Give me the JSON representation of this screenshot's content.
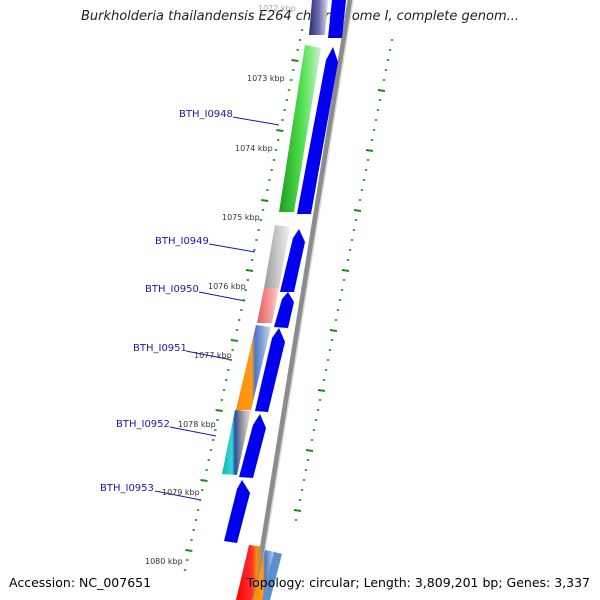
{
  "title": "Burkholderia thailandensis E264 chromosome I, complete genom...",
  "footer": {
    "accession": "Accession: NC_007651",
    "summary": "Topology: circular; Length: 3,809,201 bp; Genes: 3,337"
  },
  "kbp_labels": [
    "1072 kbp",
    "1073 kbp",
    "1074 kbp",
    "1075 kbp",
    "1076 kbp",
    "1077 kbp",
    "1078 kbp",
    "1079 kbp",
    "1080 kbp"
  ],
  "genes": [
    {
      "id": "BTH_I0948",
      "color": "#1a1aa6"
    },
    {
      "id": "BTH_I0949",
      "color": "#1a1aa6"
    },
    {
      "id": "BTH_I0950",
      "color": "#1a1aa6"
    },
    {
      "id": "BTH_I0951",
      "color": "#1a1aa6"
    },
    {
      "id": "BTH_I0952",
      "color": "#1a1aa6"
    },
    {
      "id": "BTH_I0953",
      "color": "#1a1aa6"
    }
  ],
  "colors": {
    "backbone": "#8c8c8c",
    "cds_arrow": "#0000ee",
    "tick": "#1e8a1e",
    "cog_green": "#3ccf3c",
    "cog_grey": "#bdbdbd",
    "cog_pink": "#f08080",
    "cog_orange": "#ff8c00",
    "cog_cyan": "#19c4c4",
    "cog_red": "#ff1a1a"
  }
}
